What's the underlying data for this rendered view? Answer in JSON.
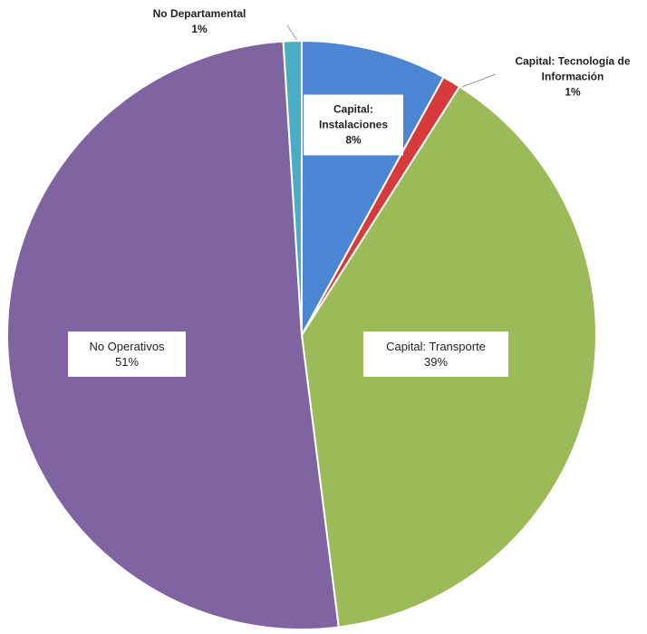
{
  "chart_data": {
    "type": "pie",
    "categories": [
      "Capital: Instalaciones",
      "Capital: Tecnología de Información",
      "Capital: Transporte",
      "No Operativos",
      "No Departamental"
    ],
    "values": [
      8,
      1,
      39,
      51,
      1
    ],
    "value_labels": [
      "8%",
      "1%",
      "39%",
      "51%",
      "1%"
    ],
    "colors": [
      "#4a86d4",
      "#d63a3a",
      "#9bbb59",
      "#8064a2",
      "#4bacc6"
    ]
  }
}
